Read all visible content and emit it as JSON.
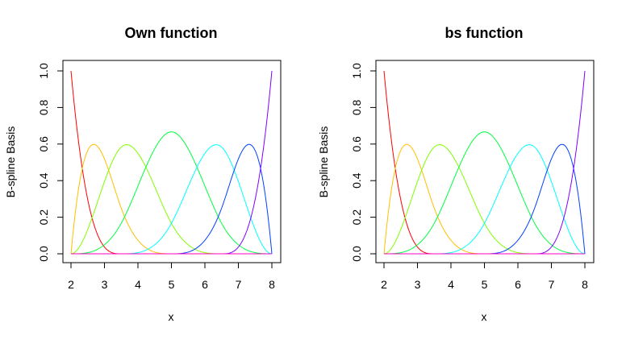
{
  "chart_data": [
    {
      "type": "line",
      "title": "Own function",
      "xlabel": "x",
      "ylabel": "B-spline Basis",
      "xlim": [
        2,
        8
      ],
      "ylim": [
        0,
        1
      ],
      "xticks": [
        2,
        3,
        4,
        5,
        6,
        7,
        8
      ],
      "yticks": [
        0.0,
        0.2,
        0.4,
        0.6,
        0.8,
        1.0
      ],
      "ytick_labels": [
        "0.0",
        "0.2",
        "0.4",
        "0.6",
        "0.8",
        "1.0"
      ],
      "grid": false,
      "knots": [
        2,
        2,
        2,
        2,
        3.5,
        5,
        6.5,
        8,
        8,
        8,
        8
      ],
      "degree": 3,
      "series": [
        {
          "color": "#ff0000"
        },
        {
          "color": "#ffbf00"
        },
        {
          "color": "#80ff00"
        },
        {
          "color": "#00ff40"
        },
        {
          "color": "#00ffff"
        },
        {
          "color": "#0040ff"
        },
        {
          "color": "#8000ff"
        },
        {
          "color": "#ff00bf"
        }
      ]
    },
    {
      "type": "line",
      "title": "bs function",
      "xlabel": "x",
      "ylabel": "B-spline Basis",
      "xlim": [
        2,
        8
      ],
      "ylim": [
        0,
        1
      ],
      "xticks": [
        2,
        3,
        4,
        5,
        6,
        7,
        8
      ],
      "yticks": [
        0.0,
        0.2,
        0.4,
        0.6,
        0.8,
        1.0
      ],
      "ytick_labels": [
        "0.0",
        "0.2",
        "0.4",
        "0.6",
        "0.8",
        "1.0"
      ],
      "grid": false,
      "knots": [
        2,
        2,
        2,
        2,
        3.5,
        5,
        6.5,
        8,
        8,
        8,
        8
      ],
      "degree": 3,
      "series": [
        {
          "color": "#ff0000"
        },
        {
          "color": "#ffbf00"
        },
        {
          "color": "#80ff00"
        },
        {
          "color": "#00ff40"
        },
        {
          "color": "#00ffff"
        },
        {
          "color": "#0040ff"
        },
        {
          "color": "#8000ff"
        },
        {
          "color": "#ff00bf"
        }
      ]
    }
  ]
}
